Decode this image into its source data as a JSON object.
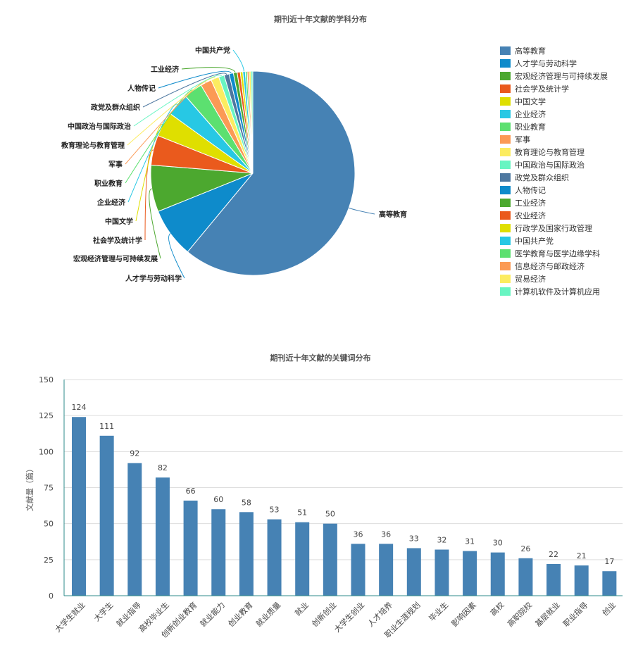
{
  "chart_data": [
    {
      "type": "pie",
      "title": "期刊近十年文献的学科分布",
      "legend_position": "right",
      "slices": [
        {
          "name": "高等教育",
          "value": 62.0,
          "color": "#4682b4",
          "labeled": true
        },
        {
          "name": "人才学与劳动科学",
          "value": 8.0,
          "color": "#0e8bcb",
          "labeled": true
        },
        {
          "name": "宏观经济管理与可持续发展",
          "value": 7.5,
          "color": "#4ca82f",
          "labeled": true
        },
        {
          "name": "社会学及统计学",
          "value": 4.8,
          "color": "#ea5a1d",
          "labeled": true
        },
        {
          "name": "中国文学",
          "value": 4.0,
          "color": "#dfdf00",
          "labeled": true
        },
        {
          "name": "企业经济",
          "value": 3.7,
          "color": "#27c8e4",
          "labeled": true
        },
        {
          "name": "职业教育",
          "value": 3.0,
          "color": "#5ce070",
          "labeled": true
        },
        {
          "name": "军事",
          "value": 1.8,
          "color": "#fb9a55",
          "labeled": true
        },
        {
          "name": "教育理论与教育管理",
          "value": 1.3,
          "color": "#fcec60",
          "labeled": true
        },
        {
          "name": "中国政治与国际政治",
          "value": 0.9,
          "color": "#68f5c2",
          "labeled": true
        },
        {
          "name": "政党及群众组织",
          "value": 0.8,
          "color": "#4e78a0",
          "labeled": true
        },
        {
          "name": "人物传记",
          "value": 0.7,
          "color": "#0e8bcb",
          "labeled": true
        },
        {
          "name": "工业经济",
          "value": 0.6,
          "color": "#4ca82f",
          "labeled": true
        },
        {
          "name": "农业经济",
          "value": 0.5,
          "color": "#ea5a1d",
          "labeled": false
        },
        {
          "name": "行政学及国家行政管理",
          "value": 0.4,
          "color": "#dfdf00",
          "labeled": false
        },
        {
          "name": "中国共产党",
          "value": 0.4,
          "color": "#27c8e4",
          "labeled": true
        },
        {
          "name": "医学教育与医学边缘学科",
          "value": 0.3,
          "color": "#5ce070",
          "labeled": false
        },
        {
          "name": "信息经济与邮政经济",
          "value": 0.3,
          "color": "#fb9a55",
          "labeled": false
        },
        {
          "name": "贸易经济",
          "value": 0.3,
          "color": "#fcec60",
          "labeled": false
        },
        {
          "name": "计算机软件及计算机应用",
          "value": 0.3,
          "color": "#68f5c2",
          "labeled": false
        }
      ]
    },
    {
      "type": "bar",
      "title": "期刊近十年文献的关键词分布",
      "ylabel": "文献量（篇）",
      "ylim": [
        0,
        150
      ],
      "yticks": [
        "0",
        "25",
        "50",
        "75",
        "100",
        "125",
        "150"
      ],
      "grid": true,
      "color": "#4682b4",
      "categories": [
        "大学生就业",
        "大学生",
        "就业指导",
        "高校毕业生",
        "创新创业教育",
        "就业能力",
        "创业教育",
        "就业质量",
        "就业",
        "创新创业",
        "大学生创业",
        "人才培养",
        "职业生涯规划",
        "毕业生",
        "影响因素",
        "高校",
        "高职院校",
        "基层就业",
        "职业指导",
        "创业"
      ],
      "values": [
        124,
        111,
        92,
        82,
        66,
        60,
        58,
        53,
        51,
        50,
        36,
        36,
        33,
        32,
        31,
        30,
        26,
        22,
        21,
        17
      ]
    }
  ]
}
